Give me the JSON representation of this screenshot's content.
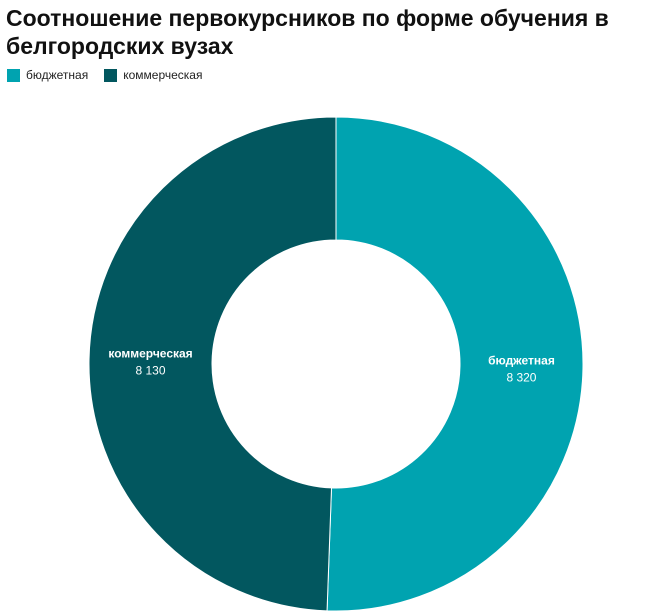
{
  "chart_data": {
    "type": "pie",
    "title": "Соотношение первокурсников по форме обучения в белгородских вузах",
    "legend_position": "top-left",
    "donut": true,
    "slices": [
      {
        "name": "бюджетная",
        "value": 8320,
        "value_label": "8 320",
        "color": "#00a3b0"
      },
      {
        "name": "коммерческая",
        "value": 8130,
        "value_label": "8 130",
        "color": "#02575f"
      }
    ]
  }
}
